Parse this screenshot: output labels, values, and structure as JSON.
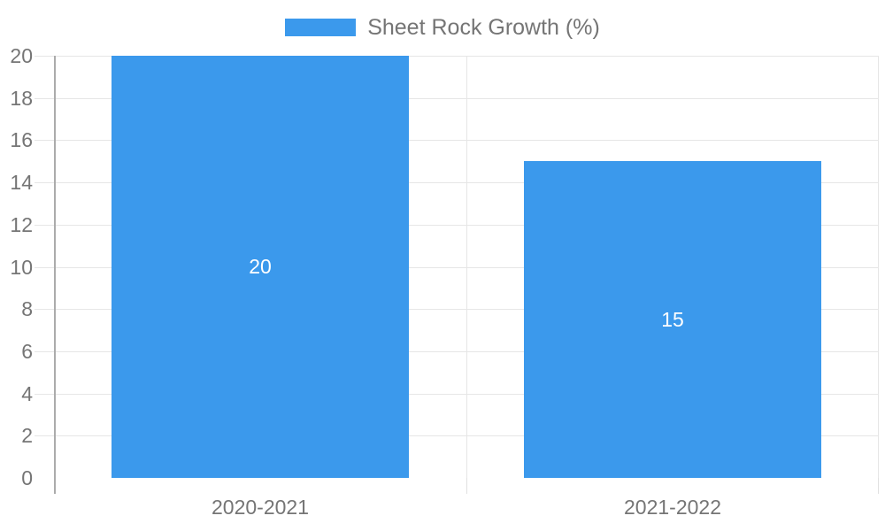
{
  "chart_data": {
    "type": "bar",
    "legend": "Sheet Rock Growth (%)",
    "legend_position": "top",
    "categories": [
      "2020-2021",
      "2021-2022"
    ],
    "series": [
      {
        "name": "Sheet Rock Growth (%)",
        "values": [
          20,
          15
        ]
      }
    ],
    "values": [
      20,
      15
    ],
    "data_labels": [
      "20",
      "15"
    ],
    "xlabel": "",
    "ylabel": "",
    "ylim": [
      0,
      20
    ],
    "ytick_step": 2,
    "yticks": [
      "0",
      "2",
      "4",
      "6",
      "8",
      "10",
      "12",
      "14",
      "16",
      "18",
      "20"
    ],
    "grid": true,
    "colors": {
      "bar": "#3B99EC",
      "data_label_text": "#FFFFFF",
      "axis_text": "#757575",
      "gridline": "#E6E6E6",
      "axis_line": "#ABABAB",
      "background": "#FFFFFF"
    }
  }
}
